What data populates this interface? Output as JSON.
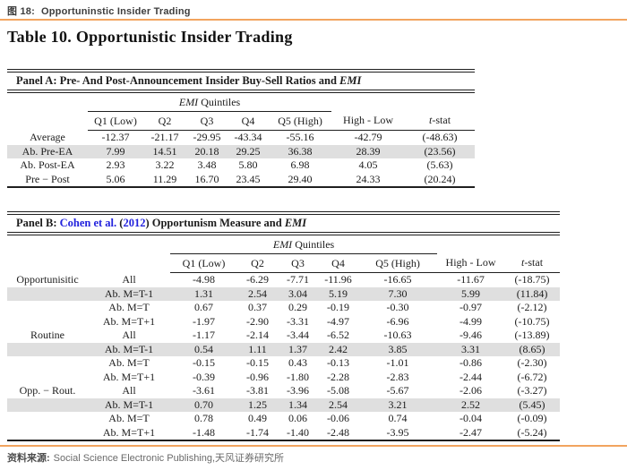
{
  "header": {
    "figure_label": "图 18:",
    "figure_title": "Opportuninstic Insider Trading"
  },
  "title": "Table 10. Opportunistic Insider Trading",
  "colors": {
    "accent_orange": "#F2A45F",
    "citation_blue": "#2222DD",
    "row_highlight": "#DFDFDF"
  },
  "quintile_group_label": {
    "emph": "EMI",
    "rest": " Quintiles"
  },
  "panel_a": {
    "title": {
      "text": "Panel A: Pre- And Post-Announcement Insider Buy-Sell Ratios and ",
      "emph": "EMI"
    },
    "columns": [
      "Q1 (Low)",
      "Q2",
      "Q3",
      "Q4",
      "Q5 (High)",
      "High - Low",
      "t-stat"
    ],
    "rows": [
      {
        "label": "Average",
        "values": [
          "-12.37",
          "-21.17",
          "-29.95",
          "-43.34",
          "-55.16",
          "-42.79",
          "(-48.63)"
        ],
        "highlight": false
      },
      {
        "label": "Ab. Pre-EA",
        "values": [
          "7.99",
          "14.51",
          "20.18",
          "29.25",
          "36.38",
          "28.39",
          "(23.56)"
        ],
        "highlight": true
      },
      {
        "label": "Ab. Post-EA",
        "values": [
          "2.93",
          "3.22",
          "3.48",
          "5.80",
          "6.98",
          "4.05",
          "(5.63)"
        ],
        "highlight": false
      },
      {
        "label": "Pre − Post",
        "values": [
          "5.06",
          "11.29",
          "16.70",
          "23.45",
          "29.40",
          "24.33",
          "(20.24)"
        ],
        "highlight": false
      }
    ]
  },
  "panel_b": {
    "title": {
      "prefix": "Panel B: ",
      "citation": "Cohen et al.",
      "paren_open": " (",
      "year": "2012",
      "paren_close": ") ",
      "text": "Opportunism Measure and ",
      "emph": "EMI"
    },
    "columns": [
      "Q1 (Low)",
      "Q2",
      "Q3",
      "Q4",
      "Q5 (High)",
      "High - Low",
      "t-stat"
    ],
    "rows": [
      {
        "group": "Opportunisitic",
        "label": "All",
        "values": [
          "-4.98",
          "-6.29",
          "-7.71",
          "-11.96",
          "-16.65",
          "-11.67",
          "(-18.75)"
        ],
        "highlight": false
      },
      {
        "group": "",
        "label": "Ab. M=T-1",
        "values": [
          "1.31",
          "2.54",
          "3.04",
          "5.19",
          "7.30",
          "5.99",
          "(11.84)"
        ],
        "highlight": true
      },
      {
        "group": "",
        "label": "Ab. M=T",
        "values": [
          "0.67",
          "0.37",
          "0.29",
          "-0.19",
          "-0.30",
          "-0.97",
          "(-2.12)"
        ],
        "highlight": false
      },
      {
        "group": "",
        "label": "Ab. M=T+1",
        "values": [
          "-1.97",
          "-2.90",
          "-3.31",
          "-4.97",
          "-6.96",
          "-4.99",
          "(-10.75)"
        ],
        "highlight": false
      },
      {
        "group": "Routine",
        "label": "All",
        "values": [
          "-1.17",
          "-2.14",
          "-3.44",
          "-6.52",
          "-10.63",
          "-9.46",
          "(-13.89)"
        ],
        "highlight": false
      },
      {
        "group": "",
        "label": "Ab. M=T-1",
        "values": [
          "0.54",
          "1.11",
          "1.37",
          "2.42",
          "3.85",
          "3.31",
          "(8.65)"
        ],
        "highlight": true
      },
      {
        "group": "",
        "label": "Ab. M=T",
        "values": [
          "-0.15",
          "-0.15",
          "0.43",
          "-0.13",
          "-1.01",
          "-0.86",
          "(-2.30)"
        ],
        "highlight": false
      },
      {
        "group": "",
        "label": "Ab. M=T+1",
        "values": [
          "-0.39",
          "-0.96",
          "-1.80",
          "-2.28",
          "-2.83",
          "-2.44",
          "(-6.72)"
        ],
        "highlight": false
      },
      {
        "group": "Opp. − Rout.",
        "label": "All",
        "values": [
          "-3.61",
          "-3.81",
          "-3.96",
          "-5.08",
          "-5.67",
          "-2.06",
          "(-3.27)"
        ],
        "highlight": false
      },
      {
        "group": "",
        "label": "Ab. M=T-1",
        "values": [
          "0.70",
          "1.25",
          "1.34",
          "2.54",
          "3.21",
          "2.52",
          "(5.45)"
        ],
        "highlight": true
      },
      {
        "group": "",
        "label": "Ab. M=T",
        "values": [
          "0.78",
          "0.49",
          "0.06",
          "-0.06",
          "0.74",
          "-0.04",
          "(-0.09)"
        ],
        "highlight": false
      },
      {
        "group": "",
        "label": "Ab. M=T+1",
        "values": [
          "-1.48",
          "-1.74",
          "-1.40",
          "-2.48",
          "-3.95",
          "-2.47",
          "(-5.24)"
        ],
        "highlight": false
      }
    ]
  },
  "footer": {
    "source_label": "资料来源:",
    "source_text": "Social Science Electronic Publishing,天风证券研究所"
  }
}
